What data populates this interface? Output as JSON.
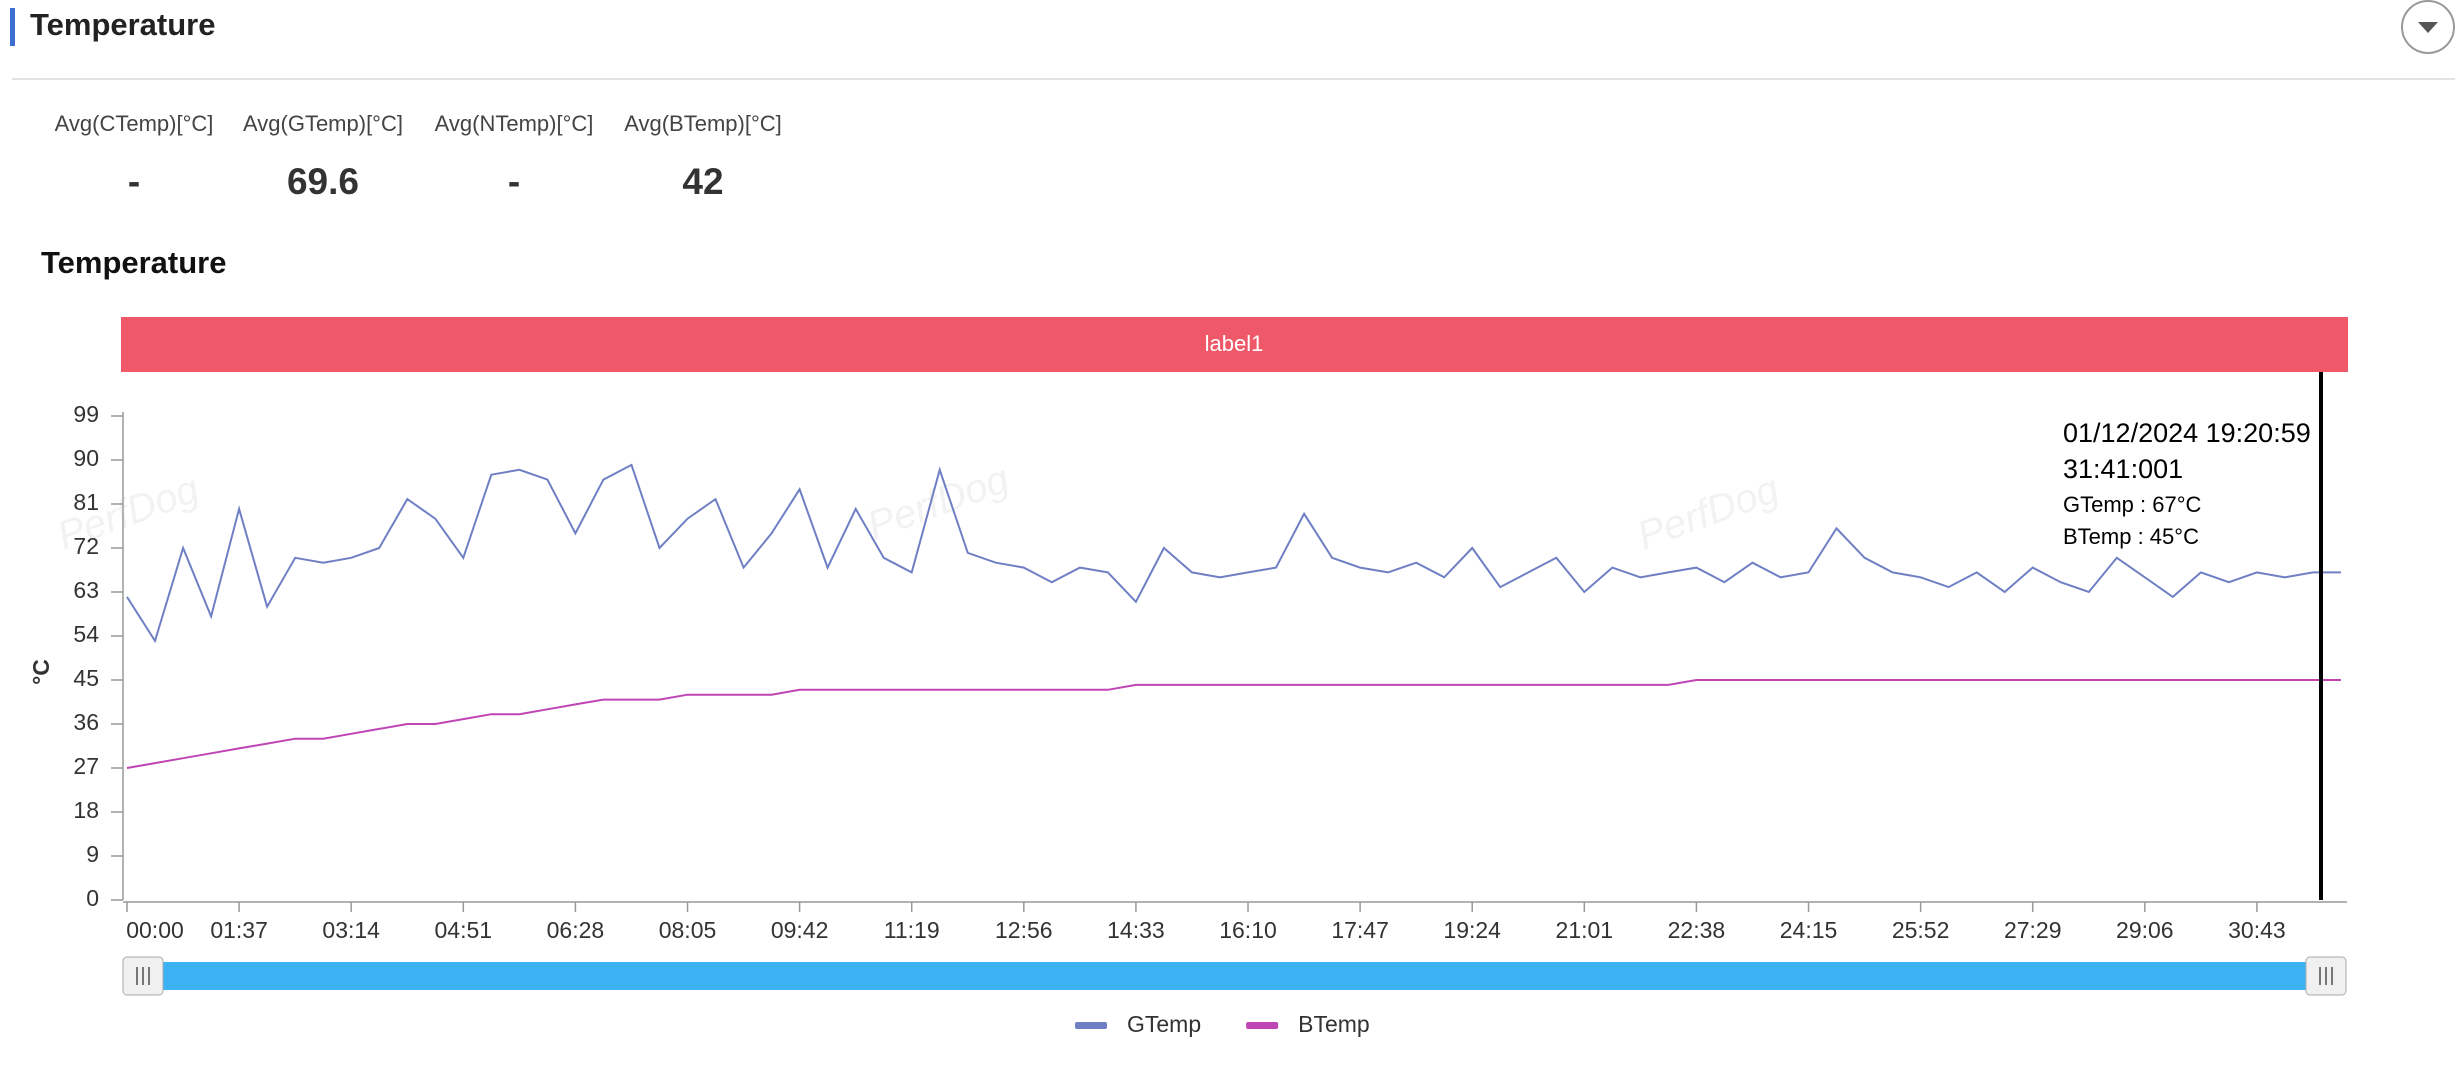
{
  "header": {
    "title": "Temperature"
  },
  "stats": [
    {
      "label": "Avg(CTemp)[°C]",
      "value": "-"
    },
    {
      "label": "Avg(GTemp)[°C]",
      "value": 69.6
    },
    {
      "label": "Avg(NTemp)[°C]",
      "value": "-"
    },
    {
      "label": "Avg(BTemp)[°C]",
      "value": 42
    }
  ],
  "chart_data": {
    "type": "line",
    "title": "Temperature",
    "band_label": "label1",
    "y_label": "°C",
    "watermark": "PerfDog",
    "categories": [
      "00:00",
      null,
      null,
      null,
      "01:37",
      null,
      null,
      null,
      "03:14",
      null,
      null,
      null,
      "04:51",
      null,
      null,
      null,
      "06:28",
      null,
      null,
      null,
      "08:05",
      null,
      null,
      null,
      "09:42",
      null,
      null,
      null,
      "11:19",
      null,
      null,
      null,
      "12:56",
      null,
      null,
      null,
      "14:33",
      null,
      null,
      null,
      "16:10",
      null,
      null,
      null,
      "17:47",
      null,
      null,
      null,
      "19:24",
      null,
      null,
      null,
      "21:01",
      null,
      null,
      null,
      "22:38",
      null,
      null,
      null,
      "24:15",
      null,
      null,
      null,
      "25:52",
      null,
      null,
      null,
      "27:29",
      null,
      null,
      null,
      "29:06",
      null,
      null,
      null,
      "30:43",
      null,
      null,
      null
    ],
    "series": [
      {
        "name": "GTemp",
        "color": "#6f7fc4",
        "values": [
          62,
          53,
          72,
          58,
          80,
          60,
          70,
          69,
          70,
          72,
          82,
          78,
          70,
          87,
          88,
          86,
          75,
          86,
          89,
          72,
          78,
          82,
          68,
          75,
          84,
          68,
          80,
          70,
          67,
          88,
          71,
          69,
          68,
          65,
          68,
          67,
          61,
          72,
          67,
          66,
          67,
          68,
          79,
          70,
          68,
          67,
          69,
          66,
          72,
          64,
          67,
          70,
          63,
          68,
          66,
          67,
          68,
          65,
          69,
          66,
          67,
          76,
          70,
          67,
          66,
          64,
          67,
          63,
          68,
          65,
          63,
          70,
          66,
          62,
          67,
          65,
          67,
          66,
          67,
          67
        ]
      },
      {
        "name": "BTemp",
        "color": "#c045b4",
        "values": [
          27,
          28,
          29,
          30,
          31,
          32,
          33,
          33,
          34,
          35,
          36,
          36,
          37,
          38,
          38,
          39,
          40,
          41,
          41,
          41,
          42,
          42,
          42,
          42,
          43,
          43,
          43,
          43,
          43,
          43,
          43,
          43,
          43,
          43,
          43,
          43,
          44,
          44,
          44,
          44,
          44,
          44,
          44,
          44,
          44,
          44,
          44,
          44,
          44,
          44,
          44,
          44,
          44,
          44,
          44,
          44,
          45,
          45,
          45,
          45,
          45,
          45,
          45,
          45,
          45,
          45,
          45,
          45,
          45,
          45,
          45,
          45,
          45,
          45,
          45,
          45,
          45,
          45,
          45,
          45
        ]
      }
    ],
    "ylim": [
      0,
      99
    ],
    "yticks": [
      0,
      9,
      18,
      27,
      36,
      45,
      54,
      63,
      72,
      81,
      90,
      99
    ],
    "tooltip": [
      "01/12/2024 19:20:59",
      "31:41:001",
      "GTemp : 67°C",
      "BTemp : 45°C"
    ]
  }
}
